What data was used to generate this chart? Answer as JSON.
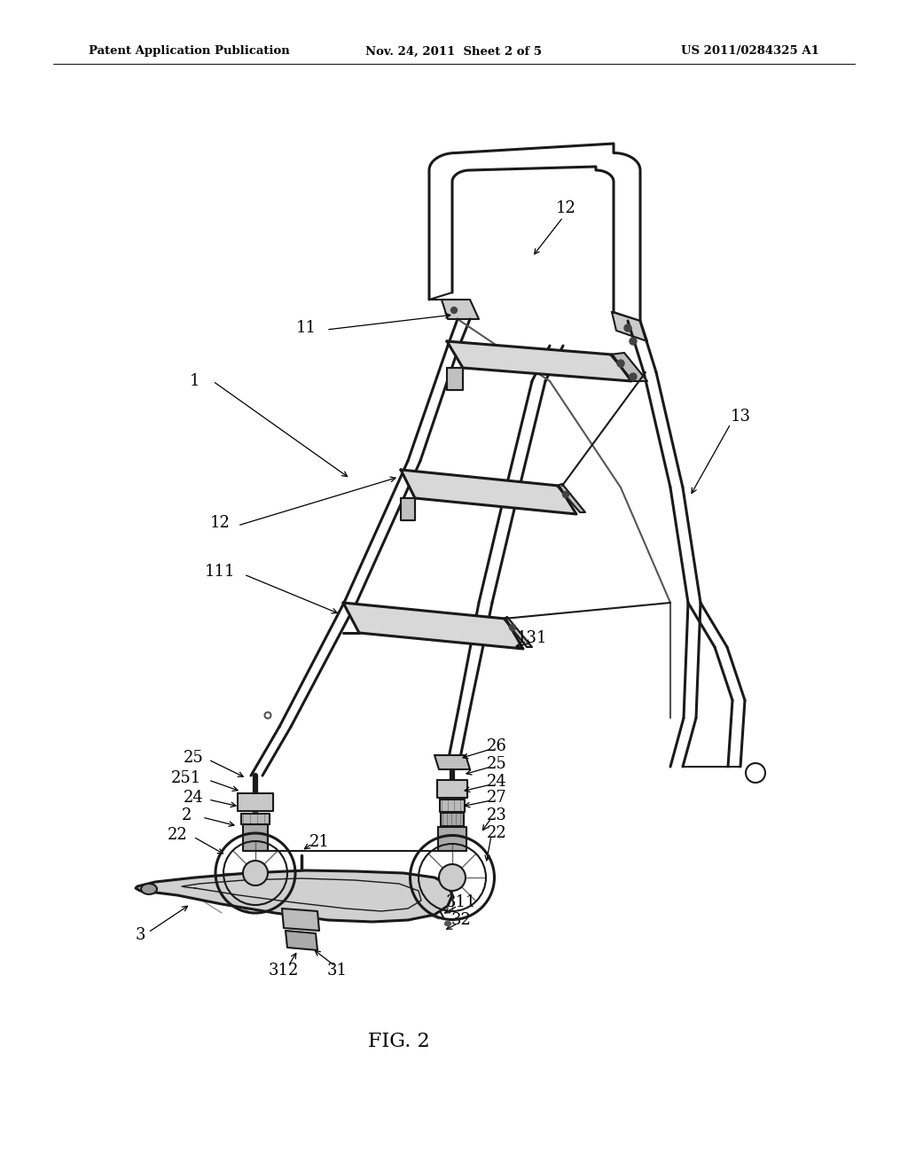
{
  "bg_color": "#ffffff",
  "line_color": "#000000",
  "fig_label": "FIG. 2",
  "header_left": "Patent Application Publication",
  "header_mid": "Nov. 24, 2011  Sheet 2 of 5",
  "header_right": "US 2011/0284325 A1"
}
